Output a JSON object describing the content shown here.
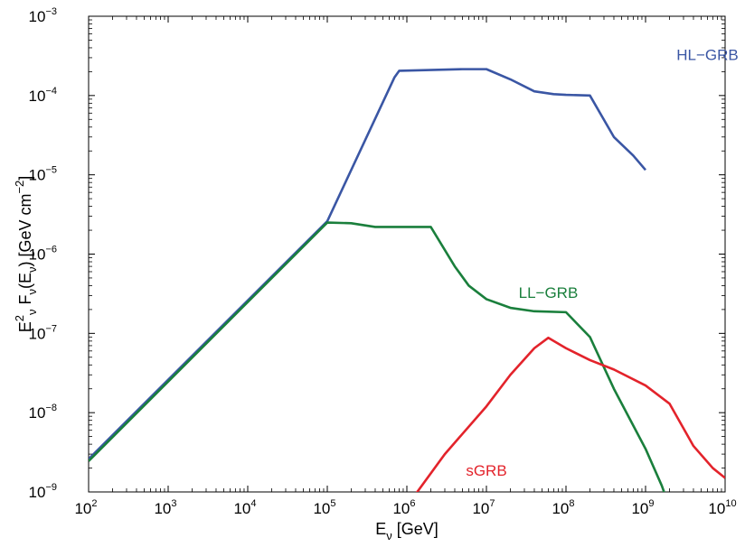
{
  "chart_data": {
    "type": "line",
    "title": "",
    "xlabel": {
      "base": "E",
      "sub": "ν",
      "unit": " [GeV]"
    },
    "ylabel": {
      "parts": [
        "E",
        "2|sup",
        "ν|sub",
        " F",
        "ν|sub",
        "(E",
        "ν|sub",
        ") [GeV cm",
        "−2|sup",
        "]"
      ]
    },
    "x_scale": "log",
    "y_scale": "log",
    "xlim": [
      100,
      10000000000
    ],
    "ylim": [
      1e-09,
      0.001
    ],
    "x_ticks": [
      {
        "base": "10",
        "exp": "2"
      },
      {
        "base": "10",
        "exp": "3"
      },
      {
        "base": "10",
        "exp": "4"
      },
      {
        "base": "10",
        "exp": "5"
      },
      {
        "base": "10",
        "exp": "6"
      },
      {
        "base": "10",
        "exp": "7"
      },
      {
        "base": "10",
        "exp": "8"
      },
      {
        "base": "10",
        "exp": "9"
      },
      {
        "base": "10",
        "exp": "10"
      }
    ],
    "y_ticks": [
      {
        "base": "10",
        "exp": "−9"
      },
      {
        "base": "10",
        "exp": "−8"
      },
      {
        "base": "10",
        "exp": "−7"
      },
      {
        "base": "10",
        "exp": "−6"
      },
      {
        "base": "10",
        "exp": "−5"
      },
      {
        "base": "10",
        "exp": "−4"
      },
      {
        "base": "10",
        "exp": "−3"
      }
    ],
    "grid": false,
    "legend": "none",
    "series": [
      {
        "name": "HL-GRB",
        "label_text": "HL−GRB",
        "color": "#3a56a4",
        "points": [
          [
            100,
            2.6e-09
          ],
          [
            100000,
            2.6e-06
          ],
          [
            700000,
            0.00017
          ],
          [
            800000,
            0.000205
          ],
          [
            5000000,
            0.000215
          ],
          [
            10000000,
            0.000215
          ],
          [
            20000000,
            0.00016
          ],
          [
            40000000,
            0.000113
          ],
          [
            70000000,
            0.000104
          ],
          [
            100000000,
            0.000102
          ],
          [
            200000000,
            0.0001
          ],
          [
            400000000,
            3e-05
          ],
          [
            700000000,
            1.75e-05
          ],
          [
            1000000000,
            1.15e-05
          ]
        ]
      },
      {
        "name": "LL-GRB",
        "label_text": "LL−GRB",
        "color": "#1a7f3c",
        "points": [
          [
            100,
            2.45e-09
          ],
          [
            100000,
            2.5e-06
          ],
          [
            200000,
            2.45e-06
          ],
          [
            400000,
            2.2e-06
          ],
          [
            1000000,
            2.2e-06
          ],
          [
            2000000,
            2.2e-06
          ],
          [
            4000000,
            7e-07
          ],
          [
            6000000,
            4e-07
          ],
          [
            10000000,
            2.7e-07
          ],
          [
            20000000,
            2.1e-07
          ],
          [
            40000000,
            1.9e-07
          ],
          [
            100000000,
            1.85e-07
          ],
          [
            200000000,
            9e-08
          ],
          [
            400000000,
            2e-08
          ],
          [
            1000000000,
            3.5e-09
          ],
          [
            1600000000,
            1.2e-09
          ],
          [
            1850000000,
            8e-10
          ]
        ]
      },
      {
        "name": "sGRB",
        "label_text": "sGRB",
        "color": "#e3232b",
        "points": [
          [
            1200000,
            8.5e-10
          ],
          [
            3000000,
            3e-09
          ],
          [
            10000000,
            1.2e-08
          ],
          [
            20000000,
            3e-08
          ],
          [
            40000000,
            6.5e-08
          ],
          [
            60000000,
            8.8e-08
          ],
          [
            100000000,
            6.5e-08
          ],
          [
            200000000,
            4.6e-08
          ],
          [
            400000000,
            3.5e-08
          ],
          [
            1000000000,
            2.2e-08
          ],
          [
            2000000000,
            1.3e-08
          ],
          [
            4000000000,
            3.8e-09
          ],
          [
            7000000000,
            2e-09
          ],
          [
            10000000000,
            1.5e-09
          ]
        ]
      }
    ],
    "series_labels": [
      {
        "name": "HL-GRB",
        "x": 6000000000,
        "y": 0.00028
      },
      {
        "name": "LL-GRB",
        "x": 60000000,
        "y": 2.8e-07
      },
      {
        "name": "sGRB",
        "x": 10000000,
        "y": 1.6e-09
      }
    ]
  }
}
